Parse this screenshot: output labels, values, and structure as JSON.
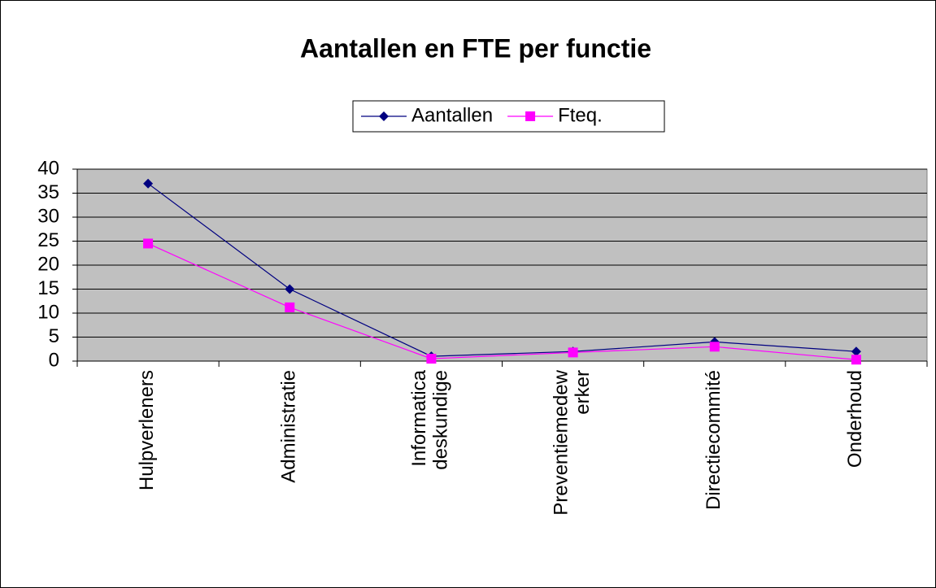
{
  "chart_data": {
    "type": "line",
    "title": "Aantallen en FTE per functie",
    "categories": [
      "Hulpverleners",
      "Administratie",
      "Informatica deskundige",
      "Preventiemedew erker",
      "Directiecommité",
      "Onderhoud"
    ],
    "series": [
      {
        "name": "Aantallen",
        "color": "#000080",
        "marker": "diamond",
        "values": [
          37,
          15,
          1,
          2,
          4,
          2
        ]
      },
      {
        "name": "Fteq.",
        "color": "#ff00ff",
        "marker": "square",
        "values": [
          24.5,
          11.2,
          0.5,
          1.8,
          3,
          0.3
        ]
      }
    ],
    "ylim": [
      0,
      40
    ],
    "yticks": [
      0,
      5,
      10,
      15,
      20,
      25,
      30,
      35,
      40
    ],
    "grid": true,
    "legend": "top"
  }
}
